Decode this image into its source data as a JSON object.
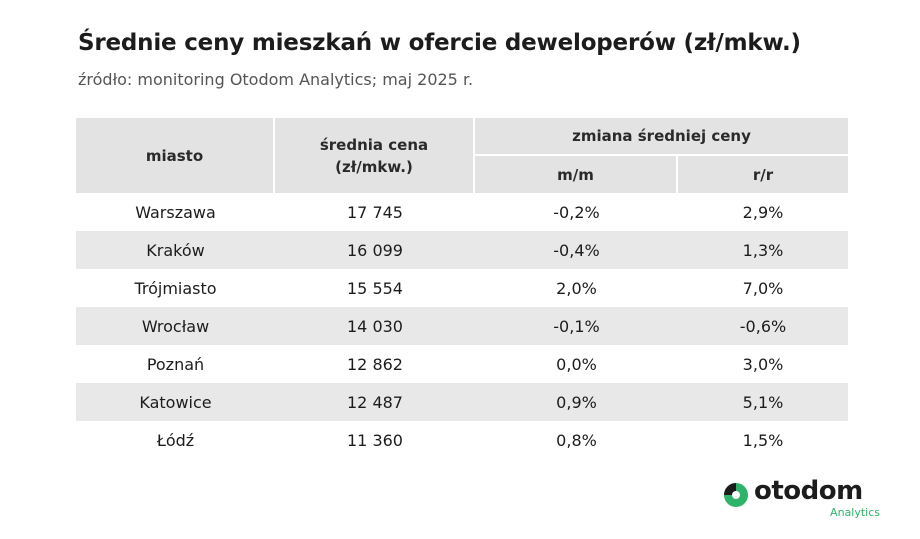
{
  "header": {
    "title": "Średnie ceny mieszkań w ofercie deweloperów (zł/mkw.)",
    "subtitle": "źródło: monitoring Otodom Analytics; maj 2025 r."
  },
  "table": {
    "columns": {
      "city": "miasto",
      "price": "średnia cena\n(zł/mkw.)",
      "change": "zmiana średniej ceny",
      "mm": "m/m",
      "rr": "r/r"
    },
    "rows": [
      [
        "Warszawa",
        "17 745",
        "-0,2%",
        "2,9%"
      ],
      [
        "Kraków",
        "16 099",
        "-0,4%",
        "1,3%"
      ],
      [
        "Trójmiasto",
        "15 554",
        "2,0%",
        "7,0%"
      ],
      [
        "Wrocław",
        "14 030",
        "-0,1%",
        "-0,6%"
      ],
      [
        "Poznań",
        "12 862",
        "0,0%",
        "3,0%"
      ],
      [
        "Katowice",
        "12 487",
        "0,9%",
        "5,1%"
      ],
      [
        "Łódź",
        "11 360",
        "0,8%",
        "1,5%"
      ]
    ]
  },
  "logo": {
    "name": "otodom",
    "sub": "Analytics"
  }
}
